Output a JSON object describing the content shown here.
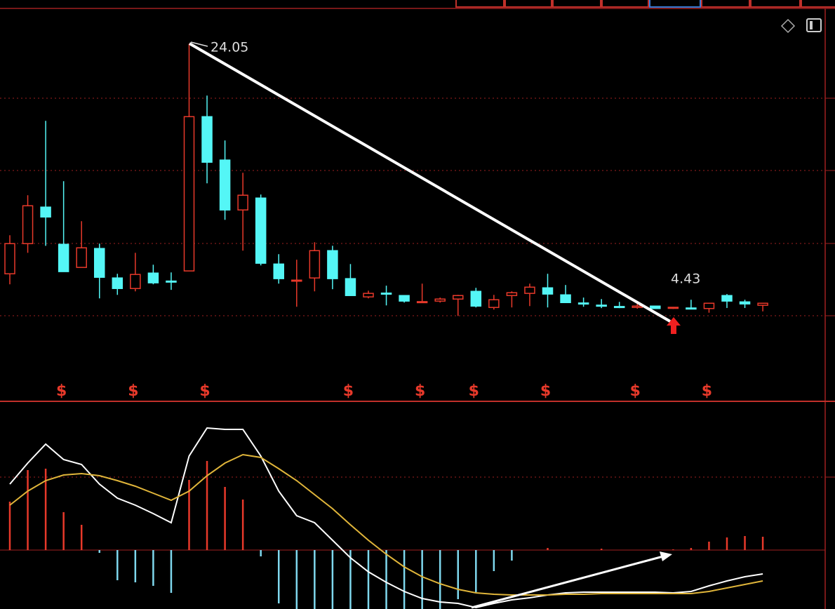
{
  "chart_data": [
    {
      "type": "candlestick",
      "categories": [
        null,
        null,
        null,
        null,
        null,
        null,
        null,
        null,
        null,
        null,
        null,
        null,
        null,
        null,
        null,
        null,
        null,
        null,
        null,
        null,
        null,
        null,
        null,
        null,
        null,
        null,
        null,
        null,
        null,
        null,
        null,
        null,
        null,
        null,
        null,
        null,
        null,
        null,
        null,
        null,
        null,
        null,
        null
      ],
      "open": [
        7.03,
        9.26,
        11.96,
        9.21,
        7.5,
        8.9,
        6.72,
        5.94,
        7.08,
        6.49,
        7.24,
        18.65,
        15.44,
        11.75,
        12.63,
        7.75,
        6.54,
        6.72,
        8.74,
        6.67,
        5.32,
        5.6,
        5.42,
        4.95,
        5.01,
        5.16,
        5.73,
        4.54,
        5.42,
        5.58,
        5.99,
        5.47,
        4.87,
        4.71,
        4.61,
        4.54,
        4.64,
        4.48,
        4.5,
        4.46,
        5.42,
        4.95,
        4.7
      ],
      "high": [
        9.88,
        12.84,
        18.34,
        13.88,
        10.92,
        9.26,
        7.03,
        8.58,
        7.7,
        7.13,
        24.05,
        20.21,
        16.89,
        14.5,
        12.89,
        8.48,
        8.07,
        9.36,
        9.1,
        7.75,
        5.78,
        6.15,
        5.42,
        6.3,
        5.27,
        5.47,
        5.99,
        5.47,
        5.73,
        6.3,
        7.03,
        6.2,
        5.27,
        5.16,
        4.95,
        5.01,
        4.64,
        4.58,
        5.11,
        4.85,
        5.53,
        5.11,
        4.85
      ],
      "low": [
        6.25,
        8.58,
        9.1,
        7.19,
        7.5,
        5.21,
        5.47,
        5.73,
        6.25,
        5.84,
        7.24,
        13.72,
        11.02,
        8.74,
        7.65,
        6.3,
        4.59,
        5.73,
        5.89,
        5.42,
        5.21,
        4.69,
        4.9,
        4.9,
        4.9,
        3.91,
        4.54,
        4.38,
        4.54,
        4.64,
        4.54,
        4.9,
        4.59,
        4.49,
        4.49,
        4.45,
        4.44,
        4.43,
        4.45,
        4.15,
        4.5,
        4.5,
        4.25
      ],
      "close": [
        9.26,
        12.06,
        11.23,
        7.19,
        8.95,
        6.77,
        5.94,
        6.98,
        6.36,
        6.46,
        18.65,
        15.28,
        11.75,
        12.84,
        7.81,
        6.67,
        6.56,
        8.74,
        6.67,
        5.42,
        5.58,
        5.58,
        5.01,
        4.97,
        5.16,
        5.42,
        4.64,
        5.11,
        5.63,
        6.04,
        5.53,
        4.9,
        4.85,
        4.69,
        4.59,
        4.64,
        4.46,
        4.55,
        4.48,
        4.85,
        5.01,
        4.8,
        4.85
      ],
      "up_color": "#e8392a",
      "down_color": "#54f6f6",
      "ylim": [
        -2.3,
        26.5
      ],
      "annotations": [
        {
          "text": "24.05"
        },
        {
          "text": "4.43"
        }
      ],
      "signals": [
        {
          "at": 3,
          "label": "$"
        },
        {
          "at": 7,
          "label": "$"
        },
        {
          "at": 11,
          "label": "$"
        },
        {
          "at": 19,
          "label": "$"
        },
        {
          "at": 23,
          "label": "$"
        },
        {
          "at": 26,
          "label": "$"
        },
        {
          "at": 30,
          "label": "$"
        },
        {
          "at": 35,
          "label": "$"
        },
        {
          "at": 39,
          "label": "$"
        }
      ]
    },
    {
      "type": "macd",
      "ylim": [
        -0.84,
        2.12
      ],
      "histogram": [
        0.69,
        1.14,
        1.16,
        0.54,
        0.36,
        -0.04,
        -0.43,
        -0.46,
        -0.51,
        -0.61,
        1.0,
        1.27,
        0.9,
        0.72,
        -0.09,
        -0.76,
        -0.84,
        -0.84,
        -0.84,
        -0.84,
        -0.84,
        -0.84,
        -0.84,
        -0.84,
        -0.84,
        -0.7,
        -0.6,
        -0.3,
        -0.15,
        0.0,
        0.03,
        0.0,
        0.0,
        0.02,
        0.0,
        0.0,
        0.0,
        0.01,
        0.03,
        0.12,
        0.18,
        0.2,
        0.19
      ],
      "series": [
        {
          "color": "#ffffff",
          "values": [
            0.94,
            1.24,
            1.51,
            1.29,
            1.22,
            0.94,
            0.74,
            0.64,
            0.52,
            0.39,
            1.34,
            1.74,
            1.72,
            1.72,
            1.34,
            0.84,
            0.49,
            0.39,
            0.14,
            -0.11,
            -0.31,
            -0.46,
            -0.59,
            -0.69,
            -0.74,
            -0.76,
            -0.82,
            -0.76,
            -0.71,
            -0.68,
            -0.64,
            -0.61,
            -0.6,
            -0.6,
            -0.6,
            -0.6,
            -0.6,
            -0.61,
            -0.59,
            -0.51,
            -0.44,
            -0.38,
            -0.34
          ]
        },
        {
          "color": "#e0b53a",
          "values": [
            0.64,
            0.84,
            0.99,
            1.07,
            1.09,
            1.06,
            0.99,
            0.91,
            0.81,
            0.71,
            0.84,
            1.06,
            1.24,
            1.36,
            1.32,
            1.16,
            0.99,
            0.79,
            0.59,
            0.36,
            0.14,
            -0.06,
            -0.24,
            -0.38,
            -0.48,
            -0.56,
            -0.61,
            -0.63,
            -0.64,
            -0.64,
            -0.64,
            -0.63,
            -0.63,
            -0.62,
            -0.62,
            -0.62,
            -0.62,
            -0.62,
            -0.62,
            -0.59,
            -0.54,
            -0.49,
            -0.44
          ]
        }
      ],
      "pos_color": "#e8392a",
      "neg_color": "#7fd8ee"
    }
  ]
}
